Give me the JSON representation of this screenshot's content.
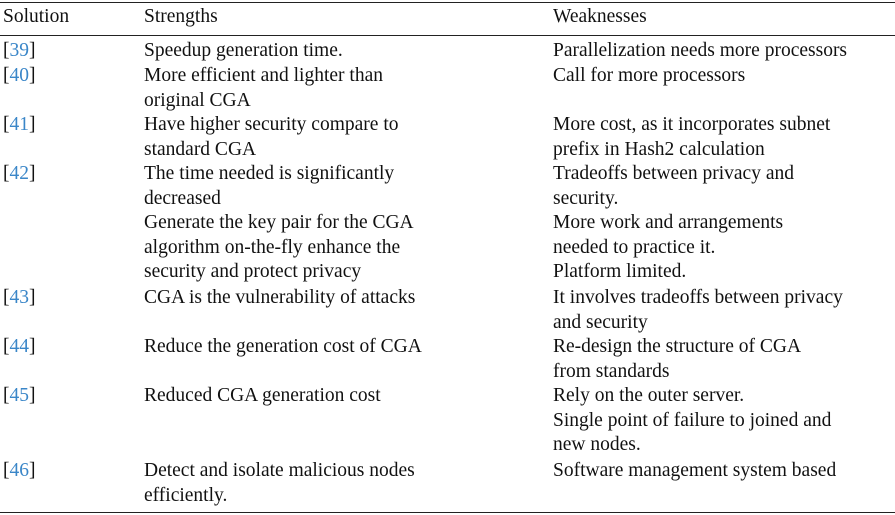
{
  "header": {
    "solution": "Solution",
    "strengths": "Strengths",
    "weaknesses": "Weaknesses"
  },
  "rows": [
    {
      "ref": "39",
      "strength": "Speedup generation time.",
      "weakness": "Parallelization needs more processors"
    },
    {
      "ref": "40",
      "strength": "More efficient and lighter than\noriginal CGA",
      "weakness": "Call for more processors"
    },
    {
      "ref": "41",
      "strength": "Have higher security compare to\nstandard CGA",
      "weakness": "More cost, as it incorporates subnet\nprefix in Hash2 calculation"
    },
    {
      "ref": "42",
      "strength": "The time needed is significantly\ndecreased\nGenerate the key pair for the CGA\nalgorithm on-the-fly enhance the\nsecurity and protect privacy",
      "weakness": "Tradeoffs between privacy and\nsecurity.\nMore work and arrangements\nneeded to practice it.\nPlatform limited."
    },
    {
      "ref": "43",
      "strength": "CGA is the vulnerability of attacks",
      "weakness": "It involves tradeoffs between privacy\nand security"
    },
    {
      "ref": "44",
      "strength": "Reduce the generation cost of CGA",
      "weakness": "Re-design the structure of CGA\nfrom standards"
    },
    {
      "ref": "45",
      "strength": "Reduced CGA generation cost",
      "weakness": "Rely on the outer server.\nSingle point of failure to joined and\nnew nodes."
    },
    {
      "ref": "46",
      "strength": "Detect and isolate malicious nodes\nefficiently.",
      "weakness": "Software management system based"
    }
  ]
}
